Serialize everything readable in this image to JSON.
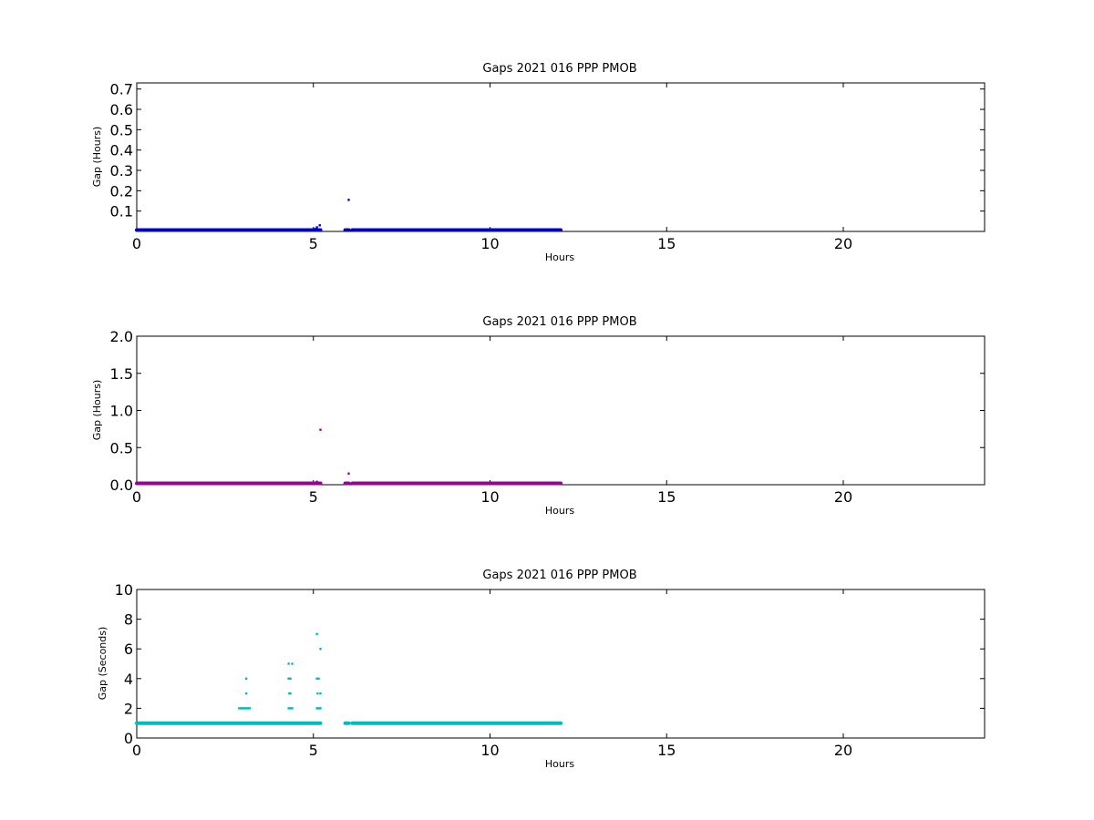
{
  "chart_data": [
    {
      "type": "scatter",
      "title": "Gaps 2021 016 PPP  PMOB",
      "xlabel": "Hours",
      "ylabel": "Gap (Hours)",
      "xlim": [
        0,
        24
      ],
      "ylim": [
        0,
        0.73
      ],
      "xticks": [
        0,
        5,
        10,
        15,
        20
      ],
      "yticks": [
        0.1,
        0.2,
        0.3,
        0.4,
        0.5,
        0.6,
        0.7
      ],
      "ytick_decimals": 1,
      "color": "#0000cc",
      "series": [
        {
          "baseline": {
            "value": 0.0003,
            "x_ranges": [
              [
                0.0,
                5.2
              ],
              [
                5.9,
                6.0
              ],
              [
                6.1,
                12.0
              ]
            ]
          },
          "points": [
            [
              5.05,
              0.012
            ],
            [
              5.1,
              0.02
            ],
            [
              5.15,
              0.008
            ],
            [
              5.18,
              0.03
            ],
            [
              5.2,
              0.01
            ],
            [
              6.0,
              0.155
            ]
          ]
        }
      ]
    },
    {
      "type": "scatter",
      "title": "Gaps 2021 016 PPP  PMOB",
      "xlabel": "Hours",
      "ylabel": "Gap (Hours)",
      "xlim": [
        0,
        24
      ],
      "ylim": [
        0,
        2.0
      ],
      "xticks": [
        0,
        5,
        10,
        15,
        20
      ],
      "yticks": [
        0.0,
        0.5,
        1.0,
        1.5,
        2.0
      ],
      "ytick_decimals": 1,
      "color": "#990099",
      "series": [
        {
          "baseline": {
            "value": 0.003,
            "x_ranges": [
              [
                0.0,
                5.2
              ],
              [
                5.9,
                6.0
              ],
              [
                6.1,
                12.0
              ]
            ]
          },
          "points": [
            [
              5.05,
              0.02
            ],
            [
              5.1,
              0.04
            ],
            [
              5.15,
              0.01
            ],
            [
              5.2,
              0.74
            ],
            [
              5.22,
              0.02
            ],
            [
              6.0,
              0.15
            ]
          ]
        }
      ]
    },
    {
      "type": "scatter",
      "title": "Gaps 2021 016 PPP  PMOB",
      "xlabel": "Hours",
      "ylabel": "Gap (Seconds)",
      "xlim": [
        0,
        24
      ],
      "ylim": [
        0,
        10
      ],
      "xticks": [
        0,
        5,
        10,
        15,
        20
      ],
      "yticks": [
        0,
        2,
        4,
        6,
        8,
        10
      ],
      "ytick_decimals": 0,
      "color": "#00bbbb",
      "series": [
        {
          "baseline": {
            "value": 1,
            "x_ranges": [
              [
                0.0,
                5.2
              ],
              [
                5.9,
                6.0
              ],
              [
                6.1,
                12.0
              ]
            ]
          },
          "points": [
            [
              2.9,
              2
            ],
            [
              2.95,
              2
            ],
            [
              3.0,
              2
            ],
            [
              3.05,
              2
            ],
            [
              3.1,
              2
            ],
            [
              3.15,
              2
            ],
            [
              3.2,
              2
            ],
            [
              3.1,
              3
            ],
            [
              3.1,
              4
            ],
            [
              4.3,
              2
            ],
            [
              4.35,
              2
            ],
            [
              4.4,
              2
            ],
            [
              4.32,
              3
            ],
            [
              4.35,
              3
            ],
            [
              4.3,
              4
            ],
            [
              4.35,
              4
            ],
            [
              4.3,
              5
            ],
            [
              4.4,
              5
            ],
            [
              5.1,
              2
            ],
            [
              5.15,
              2
            ],
            [
              5.2,
              2
            ],
            [
              5.12,
              3
            ],
            [
              5.2,
              3
            ],
            [
              5.1,
              4
            ],
            [
              5.15,
              4
            ],
            [
              5.1,
              7
            ],
            [
              5.2,
              6
            ]
          ]
        }
      ]
    }
  ]
}
